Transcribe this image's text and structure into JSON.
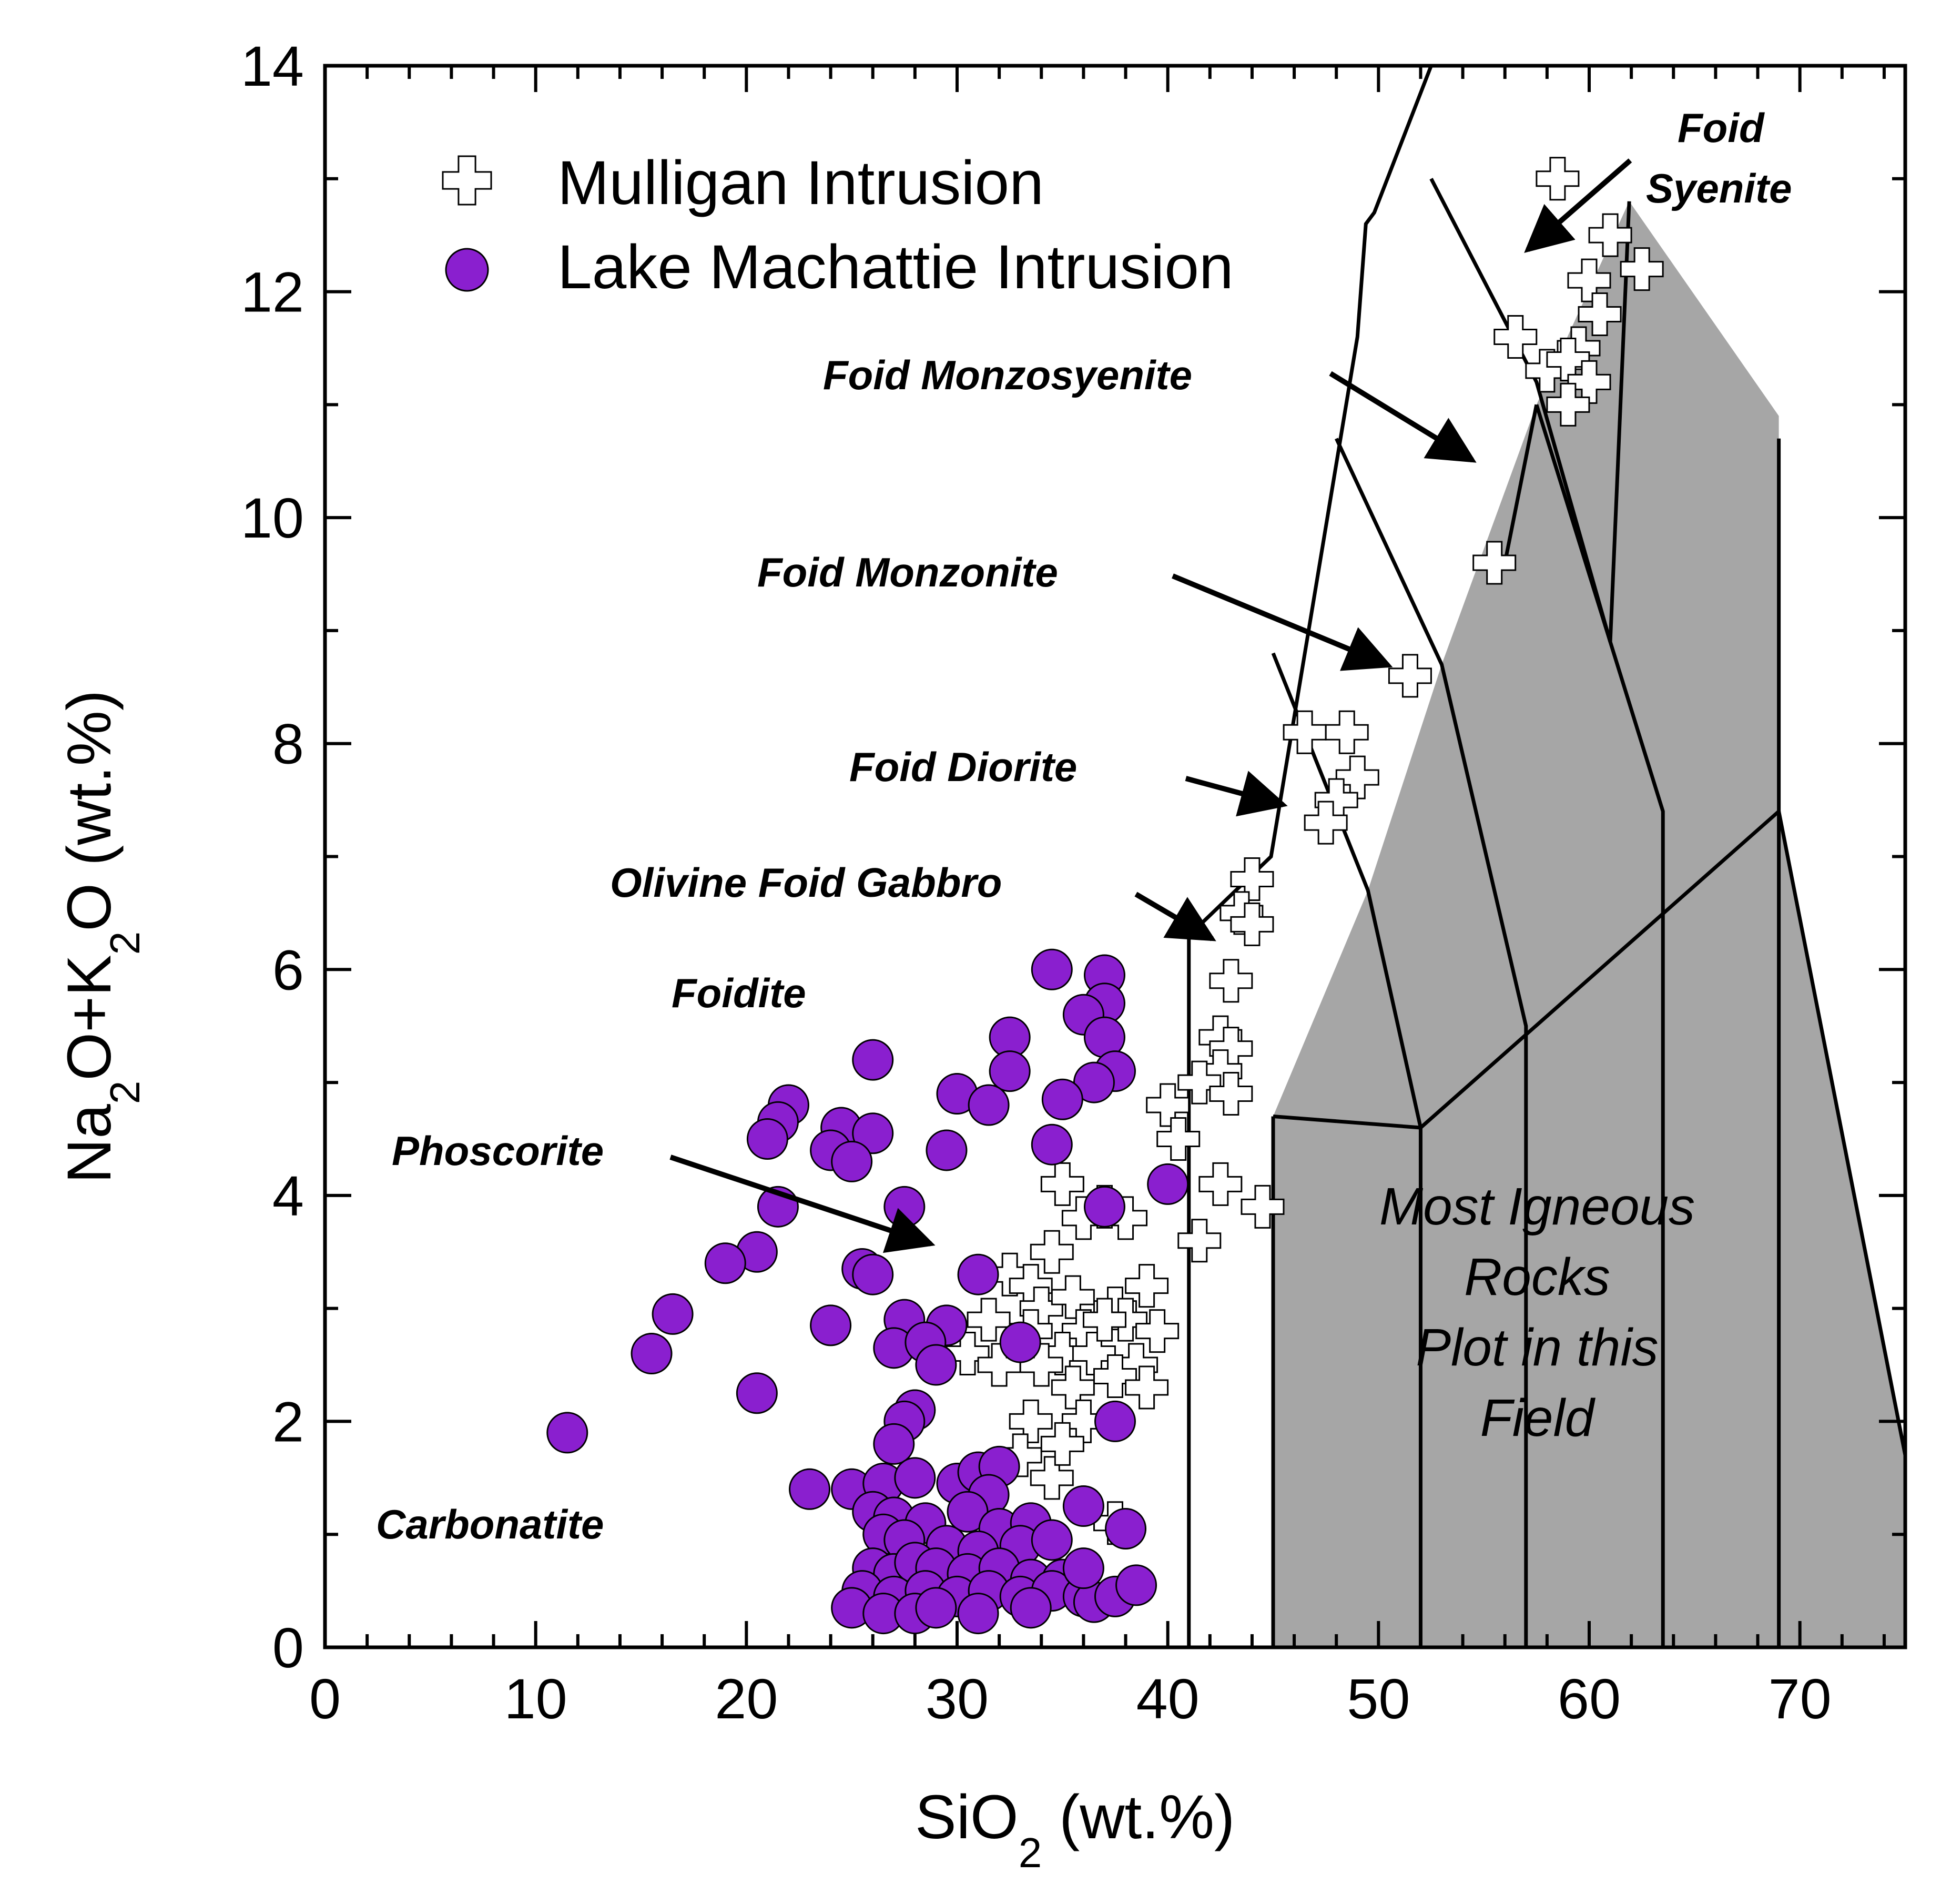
{
  "chart_data": {
    "type": "scatter",
    "title": "",
    "xlabel": {
      "main": "SiO",
      "sub": "2",
      "unit": " (wt.%)"
    },
    "ylabel": {
      "parts": [
        "Na",
        "2",
        "O+K",
        "2",
        "O (wt.%)"
      ]
    },
    "xlim": [
      0,
      75
    ],
    "ylim": [
      0,
      14
    ],
    "x_ticks": [
      "0",
      "10",
      "20",
      "30",
      "40",
      "50",
      "60",
      "70"
    ],
    "y_ticks": [
      "0",
      "2",
      "4",
      "6",
      "8",
      "10",
      "12",
      "14"
    ],
    "grid": false,
    "legend_position": "top-left",
    "series": [
      {
        "name": "Mulligan Intrusion",
        "marker": "open-cross",
        "color": "#ffffff",
        "edge_color": "#000000",
        "points": [
          [
            58.5,
            13.0
          ],
          [
            61.0,
            12.5
          ],
          [
            62.5,
            12.2
          ],
          [
            60.0,
            12.1
          ],
          [
            60.5,
            11.8
          ],
          [
            59.5,
            11.5
          ],
          [
            56.5,
            11.6
          ],
          [
            58.0,
            11.3
          ],
          [
            59.0,
            11.4
          ],
          [
            60.0,
            11.2
          ],
          [
            59.0,
            11.0
          ],
          [
            55.5,
            9.6
          ],
          [
            51.5,
            8.6
          ],
          [
            46.5,
            8.1
          ],
          [
            48.5,
            8.1
          ],
          [
            49.0,
            7.7
          ],
          [
            48.0,
            7.5
          ],
          [
            47.5,
            7.3
          ],
          [
            44.0,
            6.8
          ],
          [
            43.5,
            6.5
          ],
          [
            44.0,
            6.4
          ],
          [
            43.0,
            5.9
          ],
          [
            42.5,
            5.4
          ],
          [
            43.0,
            5.3
          ],
          [
            42.5,
            5.1
          ],
          [
            41.5,
            5.0
          ],
          [
            40.0,
            4.8
          ],
          [
            43.0,
            4.9
          ],
          [
            40.5,
            4.5
          ],
          [
            42.5,
            4.1
          ],
          [
            44.5,
            3.9
          ],
          [
            41.5,
            3.6
          ],
          [
            35.0,
            4.1
          ],
          [
            37.0,
            3.9
          ],
          [
            36.0,
            3.8
          ],
          [
            38.0,
            3.8
          ],
          [
            34.5,
            3.5
          ],
          [
            32.5,
            3.3
          ],
          [
            33.5,
            3.2
          ],
          [
            34.0,
            3.0
          ],
          [
            35.5,
            3.1
          ],
          [
            36.0,
            2.8
          ],
          [
            37.5,
            3.0
          ],
          [
            39.0,
            3.2
          ],
          [
            38.0,
            2.9
          ],
          [
            31.5,
            2.9
          ],
          [
            33.5,
            2.8
          ],
          [
            35.0,
            2.6
          ],
          [
            36.5,
            2.6
          ],
          [
            37.0,
            2.9
          ],
          [
            38.5,
            2.5
          ],
          [
            39.5,
            2.8
          ],
          [
            30.5,
            2.6
          ],
          [
            32.0,
            2.5
          ],
          [
            34.0,
            2.5
          ],
          [
            35.5,
            2.3
          ],
          [
            37.5,
            2.4
          ],
          [
            39.0,
            2.3
          ],
          [
            33.5,
            2.0
          ],
          [
            36.0,
            2.0
          ],
          [
            33.0,
            1.7
          ],
          [
            34.5,
            1.5
          ],
          [
            35.0,
            1.8
          ],
          [
            37.5,
            1.1
          ]
        ]
      },
      {
        "name": "Lake Machattie Intrusion",
        "marker": "filled-circle",
        "color": "#8a1fcf",
        "edge_color": "#000000",
        "points": [
          [
            34.5,
            6.0
          ],
          [
            37.0,
            5.95
          ],
          [
            37.0,
            5.7
          ],
          [
            36.0,
            5.6
          ],
          [
            37.0,
            5.4
          ],
          [
            32.5,
            5.4
          ],
          [
            26.0,
            5.2
          ],
          [
            32.5,
            5.1
          ],
          [
            37.5,
            5.1
          ],
          [
            36.5,
            5.0
          ],
          [
            30.0,
            4.9
          ],
          [
            31.5,
            4.8
          ],
          [
            35.0,
            4.85
          ],
          [
            22.0,
            4.8
          ],
          [
            21.5,
            4.65
          ],
          [
            24.5,
            4.6
          ],
          [
            26.0,
            4.55
          ],
          [
            24.0,
            4.4
          ],
          [
            25.0,
            4.3
          ],
          [
            21.0,
            4.5
          ],
          [
            29.5,
            4.4
          ],
          [
            34.5,
            4.45
          ],
          [
            40.0,
            4.1
          ],
          [
            21.5,
            3.9
          ],
          [
            27.5,
            3.9
          ],
          [
            37.0,
            3.9
          ],
          [
            20.5,
            3.5
          ],
          [
            19.0,
            3.4
          ],
          [
            25.5,
            3.35
          ],
          [
            26.0,
            3.3
          ],
          [
            31.0,
            3.3
          ],
          [
            16.5,
            2.95
          ],
          [
            24.0,
            2.85
          ],
          [
            27.5,
            2.9
          ],
          [
            29.5,
            2.85
          ],
          [
            15.5,
            2.6
          ],
          [
            27.0,
            2.65
          ],
          [
            28.5,
            2.7
          ],
          [
            29.0,
            2.5
          ],
          [
            33.0,
            2.7
          ],
          [
            20.5,
            2.25
          ],
          [
            28.0,
            2.1
          ],
          [
            27.5,
            2.0
          ],
          [
            37.5,
            2.0
          ],
          [
            11.5,
            1.9
          ],
          [
            27.0,
            1.8
          ],
          [
            23.0,
            1.4
          ],
          [
            25.0,
            1.4
          ],
          [
            26.5,
            1.45
          ],
          [
            28.0,
            1.5
          ],
          [
            30.0,
            1.45
          ],
          [
            31.0,
            1.55
          ],
          [
            32.0,
            1.6
          ],
          [
            31.5,
            1.35
          ],
          [
            36.0,
            1.25
          ],
          [
            38.0,
            1.05
          ],
          [
            26.0,
            1.2
          ],
          [
            27.0,
            1.15
          ],
          [
            28.5,
            1.1
          ],
          [
            30.5,
            1.2
          ],
          [
            32.0,
            1.05
          ],
          [
            33.5,
            1.1
          ],
          [
            26.5,
            1.0
          ],
          [
            27.5,
            0.95
          ],
          [
            29.5,
            0.9
          ],
          [
            31.0,
            0.85
          ],
          [
            33.0,
            0.9
          ],
          [
            34.5,
            0.95
          ],
          [
            26.0,
            0.7
          ],
          [
            27.0,
            0.65
          ],
          [
            28.0,
            0.75
          ],
          [
            29.0,
            0.7
          ],
          [
            30.5,
            0.65
          ],
          [
            32.0,
            0.7
          ],
          [
            33.5,
            0.6
          ],
          [
            35.0,
            0.6
          ],
          [
            25.5,
            0.5
          ],
          [
            27.0,
            0.45
          ],
          [
            28.5,
            0.5
          ],
          [
            30.0,
            0.45
          ],
          [
            31.5,
            0.5
          ],
          [
            33.0,
            0.45
          ],
          [
            34.5,
            0.5
          ],
          [
            36.0,
            0.45
          ],
          [
            25.0,
            0.35
          ],
          [
            26.5,
            0.3
          ],
          [
            28.0,
            0.3
          ],
          [
            29.0,
            0.35
          ],
          [
            31.0,
            0.3
          ],
          [
            33.5,
            0.35
          ],
          [
            36.5,
            0.4
          ],
          [
            37.5,
            0.45
          ],
          [
            38.5,
            0.55
          ],
          [
            36.0,
            0.7
          ]
        ]
      }
    ],
    "field_labels": [
      {
        "text": "Foid",
        "line": 1,
        "of": "Foid Syenite"
      },
      {
        "text": "Syenite"
      },
      {
        "text": "Foid Monzosyenite"
      },
      {
        "text": "Foid Monzonite"
      },
      {
        "text": "Foid Diorite"
      },
      {
        "text": "Olivine Foid Gabbro"
      },
      {
        "text": "Foidite"
      },
      {
        "text": "Phoscorite"
      },
      {
        "text": "Carbonatite"
      }
    ],
    "shaded_field_label": [
      "Most Igneous",
      "Rocks",
      "Plot in this",
      "Field"
    ],
    "shaded_field_color": "#a6a6a6",
    "boundary_lines": [
      [
        [
          52.5,
          14.0
        ],
        [
          49.8,
          12.7
        ],
        [
          49.4,
          12.6
        ],
        [
          49.0,
          11.6
        ],
        [
          44.9,
          7.0
        ],
        [
          41.0,
          6.3
        ],
        [
          41.0,
          0.0
        ]
      ],
      [
        [
          52.5,
          13.0
        ],
        [
          57.5,
          11.2
        ],
        [
          61.0,
          8.9
        ],
        [
          61.9,
          12.8
        ]
      ],
      [
        [
          48.0,
          10.7
        ],
        [
          53.0,
          8.7
        ],
        [
          57.0,
          5.5
        ],
        [
          57.0,
          0.0
        ]
      ],
      [
        [
          45.0,
          8.8
        ],
        [
          49.5,
          6.7
        ],
        [
          52.0,
          4.6
        ],
        [
          52.0,
          0.0
        ]
      ],
      [
        [
          45.0,
          4.7
        ],
        [
          52.0,
          4.6
        ],
        [
          69.0,
          7.4
        ],
        [
          69.0,
          10.7
        ]
      ],
      [
        [
          45.0,
          4.7
        ],
        [
          45.0,
          0.0
        ]
      ],
      [
        [
          57.5,
          11.0
        ],
        [
          63.5,
          7.4
        ],
        [
          63.5,
          0.0
        ]
      ],
      [
        [
          69.0,
          7.4
        ],
        [
          69.0,
          0.0
        ]
      ]
    ]
  }
}
